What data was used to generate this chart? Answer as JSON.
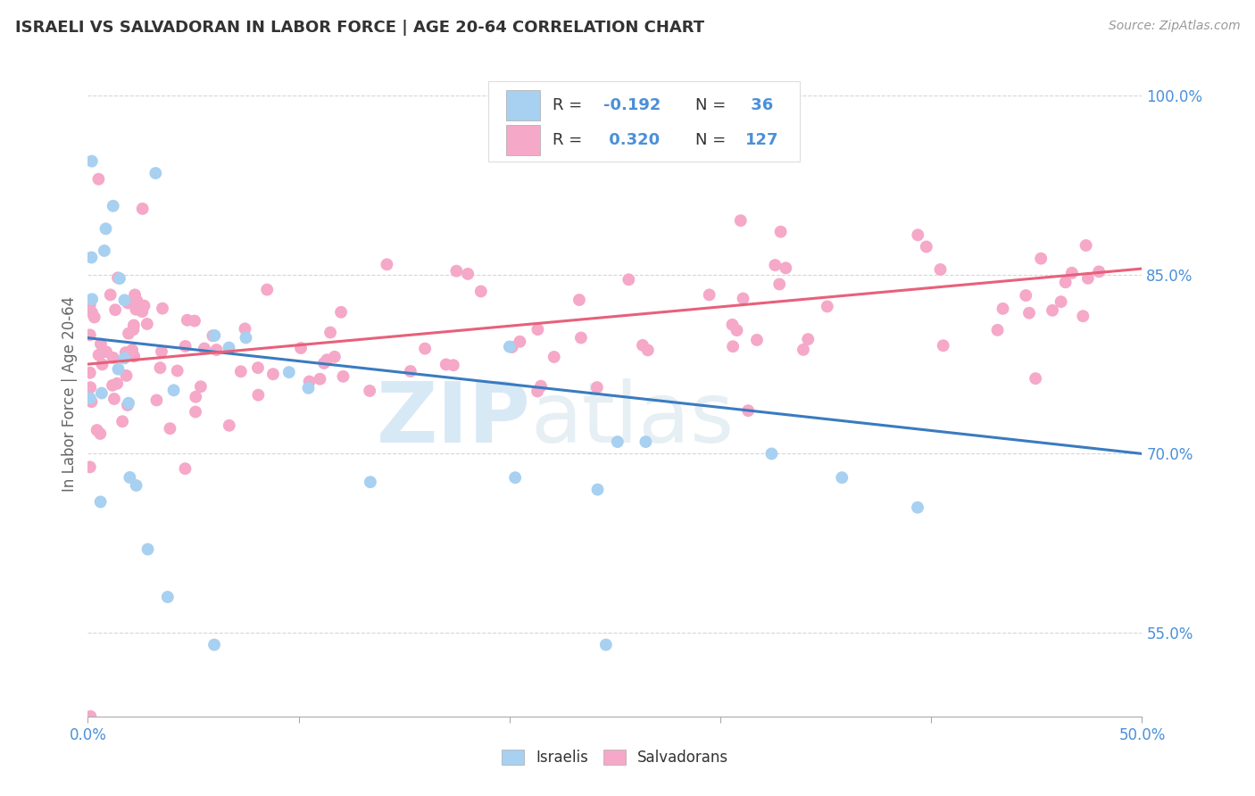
{
  "title": "ISRAELI VS SALVADORAN IN LABOR FORCE | AGE 20-64 CORRELATION CHART",
  "source": "Source: ZipAtlas.com",
  "ylabel": "In Labor Force | Age 20-64",
  "xlim": [
    0.0,
    0.5
  ],
  "ylim": [
    0.48,
    1.02
  ],
  "ytick_labels_right": [
    "55.0%",
    "70.0%",
    "85.0%",
    "100.0%"
  ],
  "ytick_values_right": [
    0.55,
    0.7,
    0.85,
    1.0
  ],
  "israeli_color": "#a8d0f0",
  "salvadoran_color": "#f5a8c8",
  "line_israeli_color": "#3a7bbf",
  "line_salvadoran_color": "#e8607a",
  "watermark_zip": "ZIP",
  "watermark_atlas": "atlas",
  "background_color": "#ffffff",
  "grid_color": "#cccccc",
  "tick_color": "#4a90d9",
  "legend_text_color": "#333333",
  "legend_num_color": "#4a90d9"
}
